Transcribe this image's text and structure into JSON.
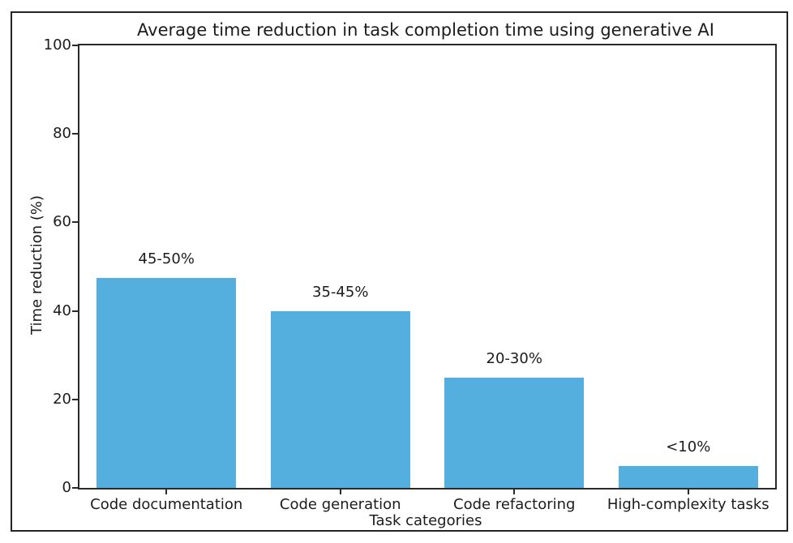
{
  "chart_data": {
    "type": "bar",
    "title": "Average time reduction in task completion time using generative AI",
    "xlabel": "Task categories",
    "ylabel": "Time reduction (%)",
    "categories": [
      "Code documentation",
      "Code generation",
      "Code refactoring",
      "High-complexity tasks"
    ],
    "values": [
      47.5,
      40,
      25,
      5
    ],
    "bar_labels": [
      "45-50%",
      "35-45%",
      "20-30%",
      "<10%"
    ],
    "ylim": [
      0,
      100
    ],
    "yticks": [
      0,
      20,
      40,
      60,
      80,
      100
    ],
    "grid": false,
    "legend": "none",
    "bar_width_fraction": 0.8,
    "bar_color": "#55afde"
  },
  "style": {
    "bar_color": "#55afde",
    "text_color": "#1c1c1c",
    "spine_color": "#2a2a2a",
    "outer_border_color": "#242424",
    "background": "#ffffff"
  }
}
